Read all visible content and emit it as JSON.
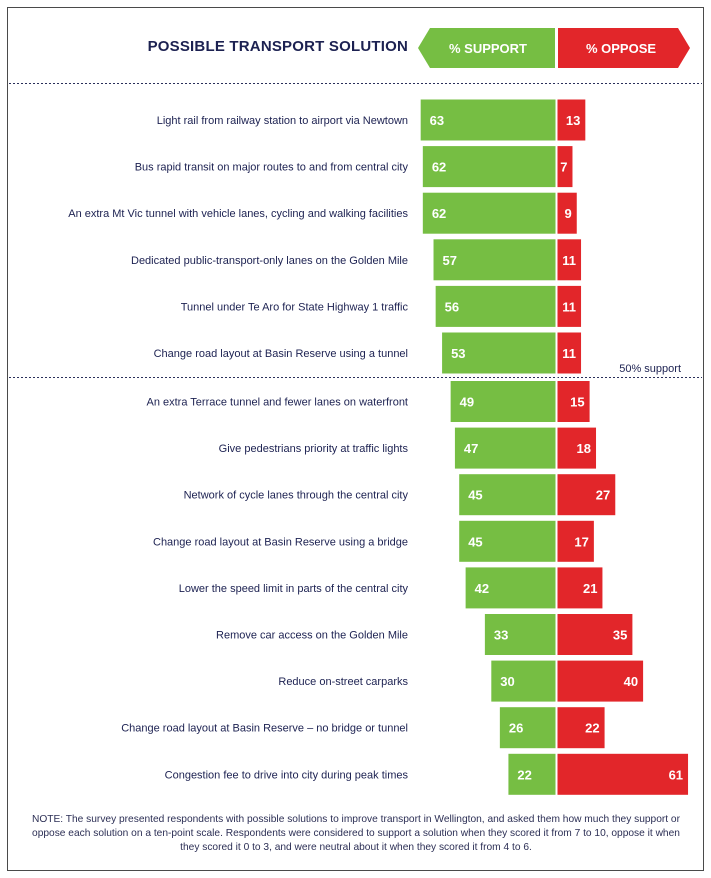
{
  "chart_data": {
    "type": "bar",
    "title": "POSSIBLE TRANSPORT SOLUTION",
    "support_header": "% SUPPORT",
    "oppose_header": "% OPPOSE",
    "threshold_label": "50% support",
    "colors": {
      "support": "#76be43",
      "oppose": "#e2262a",
      "text": "#1c2151"
    },
    "categories": [
      "Light rail from railway station to airport via Newtown",
      "Bus rapid transit on major routes to and from central city",
      "An extra Mt Vic tunnel with vehicle lanes, cycling and walking facilities",
      "Dedicated public-transport-only lanes on the Golden Mile",
      "Tunnel under Te Aro for State Highway 1 traffic",
      "Change road layout at Basin Reserve using a tunnel",
      "An extra Terrace tunnel and fewer lanes on waterfront",
      "Give pedestrians priority at traffic lights",
      "Network of cycle lanes through the central city",
      "Change road layout at Basin Reserve using a bridge",
      "Lower the speed limit in parts of the central city",
      "Remove car access on the Golden Mile",
      "Reduce on-street carparks",
      "Change road layout at Basin Reserve – no bridge or tunnel",
      "Congestion fee to drive into city during peak times"
    ],
    "series": [
      {
        "name": "% SUPPORT",
        "values": [
          63,
          62,
          62,
          57,
          56,
          53,
          49,
          47,
          45,
          45,
          42,
          33,
          30,
          26,
          22
        ]
      },
      {
        "name": "% OPPOSE",
        "values": [
          13,
          7,
          9,
          11,
          11,
          11,
          15,
          18,
          27,
          17,
          21,
          35,
          40,
          22,
          61
        ]
      }
    ]
  },
  "note": "NOTE: The survey presented respondents with possible solutions to improve transport in Wellington, and asked them how much they support or oppose each solution on a ten-point scale. Respondents were considered to support a solution when they scored it from 7 to 10, oppose it when they scored it 0 to 3, and were neutral about it when they scored it from 4 to 6."
}
